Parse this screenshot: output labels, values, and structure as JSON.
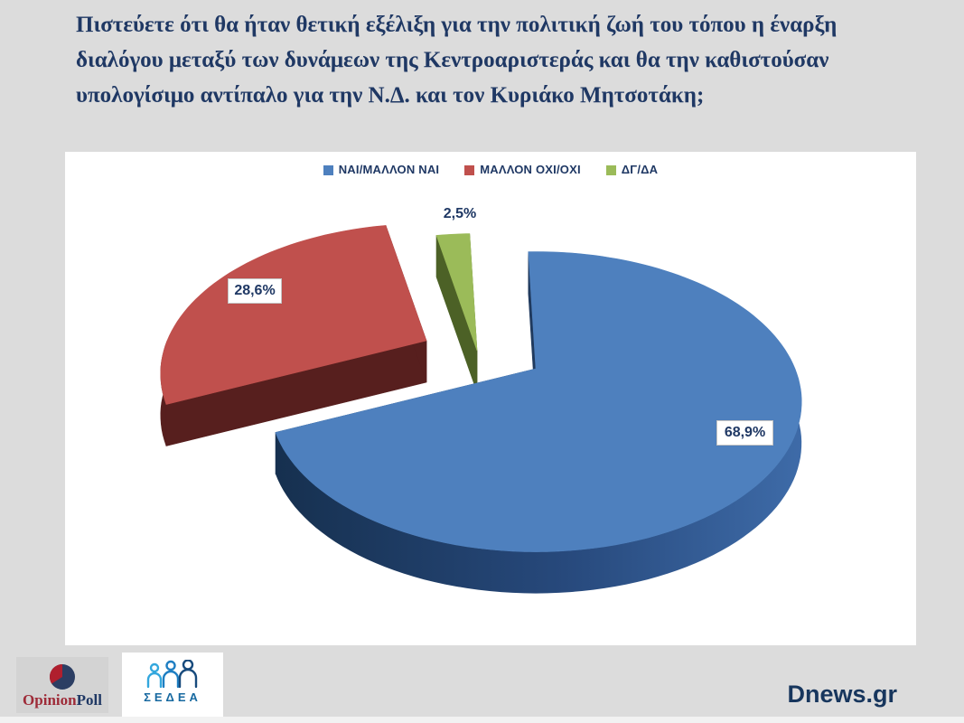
{
  "title": {
    "lines": [
      "Πιστεύετε ότι θα ήταν θετική εξέλιξη για την πολιτική ζωή του τόπου η έναρξη",
      "διαλόγου μεταξύ των δυνάμεων της Κεντροαριστεράς και θα την καθιστούσαν",
      "υπολογίσιμο αντίπαλο για την Ν.Δ. και τον Κυριάκο Μητσοτάκη;"
    ]
  },
  "chart_data": {
    "type": "pie",
    "style": "3d-exploded",
    "labels": [
      "ΝΑΙ/ΜΑΛΛΟΝ ΝΑΙ",
      "ΜΑΛΛΟΝ ΟΧΙ/ΟΧΙ",
      "ΔΓ/ΔΑ"
    ],
    "values": [
      68.9,
      28.6,
      2.5
    ],
    "value_labels": [
      "68,9%",
      "28,6%",
      "2,5%"
    ],
    "colors": [
      "#4e80be",
      "#c0504d",
      "#9bbb59"
    ],
    "side_colors": [
      "#203a5e",
      "#571f1e",
      "#4c6126"
    ],
    "legend_position": "top",
    "start_angle_deg": -2,
    "exploded_slices": [
      "ΜΑΛΛΟΝ ΟΧΙ/ΟΧΙ",
      "ΔΓ/ΔΑ"
    ]
  },
  "footer": {
    "opinionpoll_part1": "Opinion",
    "opinionpoll_part2": "Poll",
    "sedea_label": "ΣΕΔΕΑ",
    "source": "Dnews.gr"
  },
  "colors": {
    "background": "#dcdcdc",
    "panel": "#ffffff",
    "text_navy": "#1f3864"
  }
}
